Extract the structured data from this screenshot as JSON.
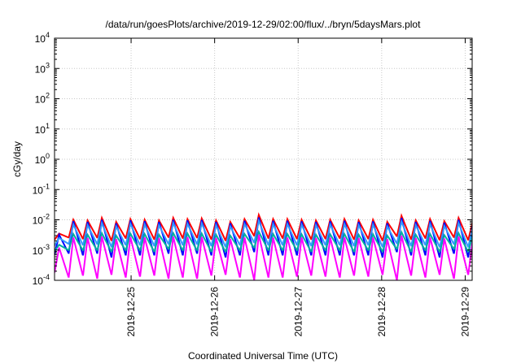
{
  "chart_data": {
    "type": "line",
    "title": "/data/run/goesPlots/archive/2019-12-29/02:00/flux/../bryn/5daysMars.plot",
    "xlabel": "Coordinated Universal Time (UTC)",
    "ylabel": "cGy/day",
    "xlim": [
      "2019-12-24T02:00",
      "2019-12-29T02:00"
    ],
    "ylim": [
      0.0001,
      10000
    ],
    "yscale": "log",
    "grid": true,
    "legend": "none",
    "x_ticks": [
      "2019-12-25",
      "2019-12-26",
      "2019-12-27",
      "2019-12-28",
      "2019-12-29"
    ],
    "y_ticks": [
      {
        "base": "10",
        "exp": "-4"
      },
      {
        "base": "10",
        "exp": "-3"
      },
      {
        "base": "10",
        "exp": "-2"
      },
      {
        "base": "10",
        "exp": "-1"
      },
      {
        "base": "10",
        "exp": "0"
      },
      {
        "base": "10",
        "exp": "1"
      },
      {
        "base": "10",
        "exp": "2"
      },
      {
        "base": "10",
        "exp": "3"
      },
      {
        "base": "10",
        "exp": "4"
      }
    ],
    "pattern": {
      "description_free_values": true,
      "tooth_start_hours": [
        0,
        4.1,
        8.2,
        12.3,
        16.4,
        20.5,
        24.6,
        28.7,
        32.8,
        36.9,
        41,
        45.1,
        49.2,
        53.3,
        57.4,
        61.5,
        65.6,
        69.7,
        73.8,
        77.9,
        82,
        86.1,
        90.2,
        94.3,
        98.4,
        102.5,
        106.6,
        110.7,
        114.8,
        118.9
      ],
      "peak_offset_hours": 1.3,
      "tooth_length_hours": 4.0
    },
    "series": [
      {
        "color": "#ff0000",
        "peaks": [
          0.0035,
          0.01,
          0.0095,
          0.0115,
          0.0085,
          0.0105,
          0.01,
          0.0095,
          0.0115,
          0.0105,
          0.011,
          0.0095,
          0.0085,
          0.0105,
          0.0145,
          0.0105,
          0.0105,
          0.01,
          0.0095,
          0.01,
          0.0105,
          0.0095,
          0.01,
          0.0085,
          0.0135,
          0.0095,
          0.0105,
          0.009,
          0.0115,
          0.009
        ],
        "troughs": [
          0.0022,
          0.0026,
          0.0024,
          0.0026,
          0.0021,
          0.0025,
          0.0024,
          0.0023,
          0.0027,
          0.0025,
          0.0026,
          0.0023,
          0.0021,
          0.0025,
          0.003,
          0.0025,
          0.0025,
          0.0024,
          0.0023,
          0.0024,
          0.0025,
          0.0023,
          0.0024,
          0.0021,
          0.0029,
          0.0023,
          0.0025,
          0.0022,
          0.0027,
          0.0022
        ]
      },
      {
        "color": "#0000ff",
        "peaks": [
          0.0032,
          0.009,
          0.0085,
          0.01,
          0.0076,
          0.0095,
          0.009,
          0.0085,
          0.01,
          0.0095,
          0.0098,
          0.0085,
          0.0076,
          0.0093,
          0.012,
          0.0093,
          0.0093,
          0.0089,
          0.0085,
          0.0089,
          0.0093,
          0.0085,
          0.0089,
          0.0076,
          0.0115,
          0.0085,
          0.0093,
          0.008,
          0.01,
          0.008
        ],
        "troughs": [
          0.0007,
          0.0008,
          0.0007,
          0.0008,
          0.0006,
          0.0007,
          0.0007,
          0.0007,
          0.0008,
          0.0007,
          0.0008,
          0.0007,
          0.0006,
          0.0007,
          0.0009,
          0.0007,
          0.0007,
          0.0007,
          0.0007,
          0.0007,
          0.0007,
          0.0007,
          0.0007,
          0.0006,
          0.0009,
          0.0007,
          0.0007,
          0.0006,
          0.0008,
          0.0006
        ]
      },
      {
        "color": "#3399ff",
        "peaks": [
          0.0025,
          0.007,
          0.0066,
          0.0078,
          0.006,
          0.0074,
          0.007,
          0.0066,
          0.0078,
          0.0074,
          0.0076,
          0.0066,
          0.006,
          0.0072,
          0.0092,
          0.0072,
          0.0072,
          0.0069,
          0.0066,
          0.0069,
          0.0072,
          0.0066,
          0.0069,
          0.006,
          0.0088,
          0.0066,
          0.0072,
          0.0062,
          0.0078,
          0.0062
        ],
        "troughs": [
          0.0014,
          0.0016,
          0.0015,
          0.0016,
          0.0013,
          0.0015,
          0.0015,
          0.0014,
          0.0016,
          0.0015,
          0.0016,
          0.0014,
          0.0013,
          0.0015,
          0.0018,
          0.0015,
          0.0015,
          0.0015,
          0.0014,
          0.0015,
          0.0015,
          0.0014,
          0.0015,
          0.0013,
          0.0017,
          0.0014,
          0.0015,
          0.0013,
          0.0016,
          0.0013
        ]
      },
      {
        "color": "#00b0a0",
        "peaks": [
          0.0015,
          0.0034,
          0.0032,
          0.0036,
          0.003,
          0.0035,
          0.0034,
          0.0032,
          0.0036,
          0.0035,
          0.0035,
          0.0032,
          0.003,
          0.0034,
          0.004,
          0.0034,
          0.0034,
          0.0033,
          0.0032,
          0.0033,
          0.0034,
          0.0032,
          0.0033,
          0.003,
          0.0039,
          0.0032,
          0.0034,
          0.0031,
          0.0036,
          0.0031
        ],
        "troughs": [
          0.0009,
          0.001,
          0.001,
          0.001,
          0.0009,
          0.001,
          0.001,
          0.0009,
          0.0011,
          0.001,
          0.001,
          0.0009,
          0.0009,
          0.001,
          0.0012,
          0.001,
          0.001,
          0.001,
          0.0009,
          0.001,
          0.001,
          0.0009,
          0.001,
          0.0009,
          0.0011,
          0.0009,
          0.001,
          0.0009,
          0.0011,
          0.0009
        ]
      },
      {
        "color": "#ff00ff",
        "peaks": [
          0.0012,
          0.0026,
          0.0025,
          0.0028,
          0.0023,
          0.0027,
          0.0026,
          0.0025,
          0.0028,
          0.0027,
          0.0027,
          0.0025,
          0.0023,
          0.0026,
          0.0032,
          0.0026,
          0.0026,
          0.0026,
          0.0025,
          0.0026,
          0.0026,
          0.0025,
          0.0026,
          0.0023,
          0.003,
          0.0025,
          0.0026,
          0.0024,
          0.0028,
          0.0024
        ],
        "troughs": [
          0.00018,
          0.00013,
          0.00015,
          0.00012,
          0.00016,
          0.00013,
          0.00014,
          0.00015,
          0.00012,
          0.00013,
          0.00012,
          0.00015,
          0.00016,
          0.00013,
          0.00011,
          0.00013,
          0.00013,
          0.00014,
          0.00015,
          0.00014,
          0.00013,
          0.00015,
          0.00014,
          0.00016,
          0.00011,
          0.00015,
          0.00013,
          0.00016,
          0.00012,
          0.00016
        ]
      }
    ]
  }
}
